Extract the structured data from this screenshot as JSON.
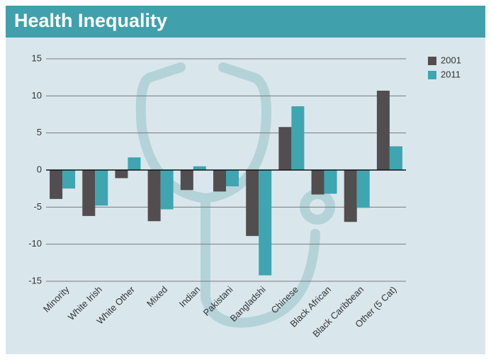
{
  "chart_data": {
    "type": "bar",
    "title": "Health Inequality",
    "categories": [
      "Minority",
      "White Irish",
      "White Other",
      "Mixed",
      "Indian",
      "Pakistani",
      "Bangladshi",
      "Chinese",
      "Black African",
      "Black Caribbean",
      "Other (5 Cat)"
    ],
    "series": [
      {
        "name": "2001",
        "color": "#524d4f",
        "values": [
          -3.9,
          -6.2,
          -1.1,
          -6.9,
          -2.7,
          -2.9,
          -8.9,
          5.8,
          -3.3,
          -7.0,
          10.7
        ]
      },
      {
        "name": "2011",
        "color": "#3fa5b0",
        "values": [
          -2.5,
          -4.8,
          1.7,
          -5.3,
          0.5,
          -2.2,
          -14.2,
          8.6,
          -3.2,
          -5.1,
          3.2
        ]
      }
    ],
    "ylim": [
      -15,
      15
    ],
    "yticks": [
      -15,
      -10,
      -5,
      0,
      5,
      10,
      15
    ],
    "grid": true,
    "legend": "top-right"
  }
}
